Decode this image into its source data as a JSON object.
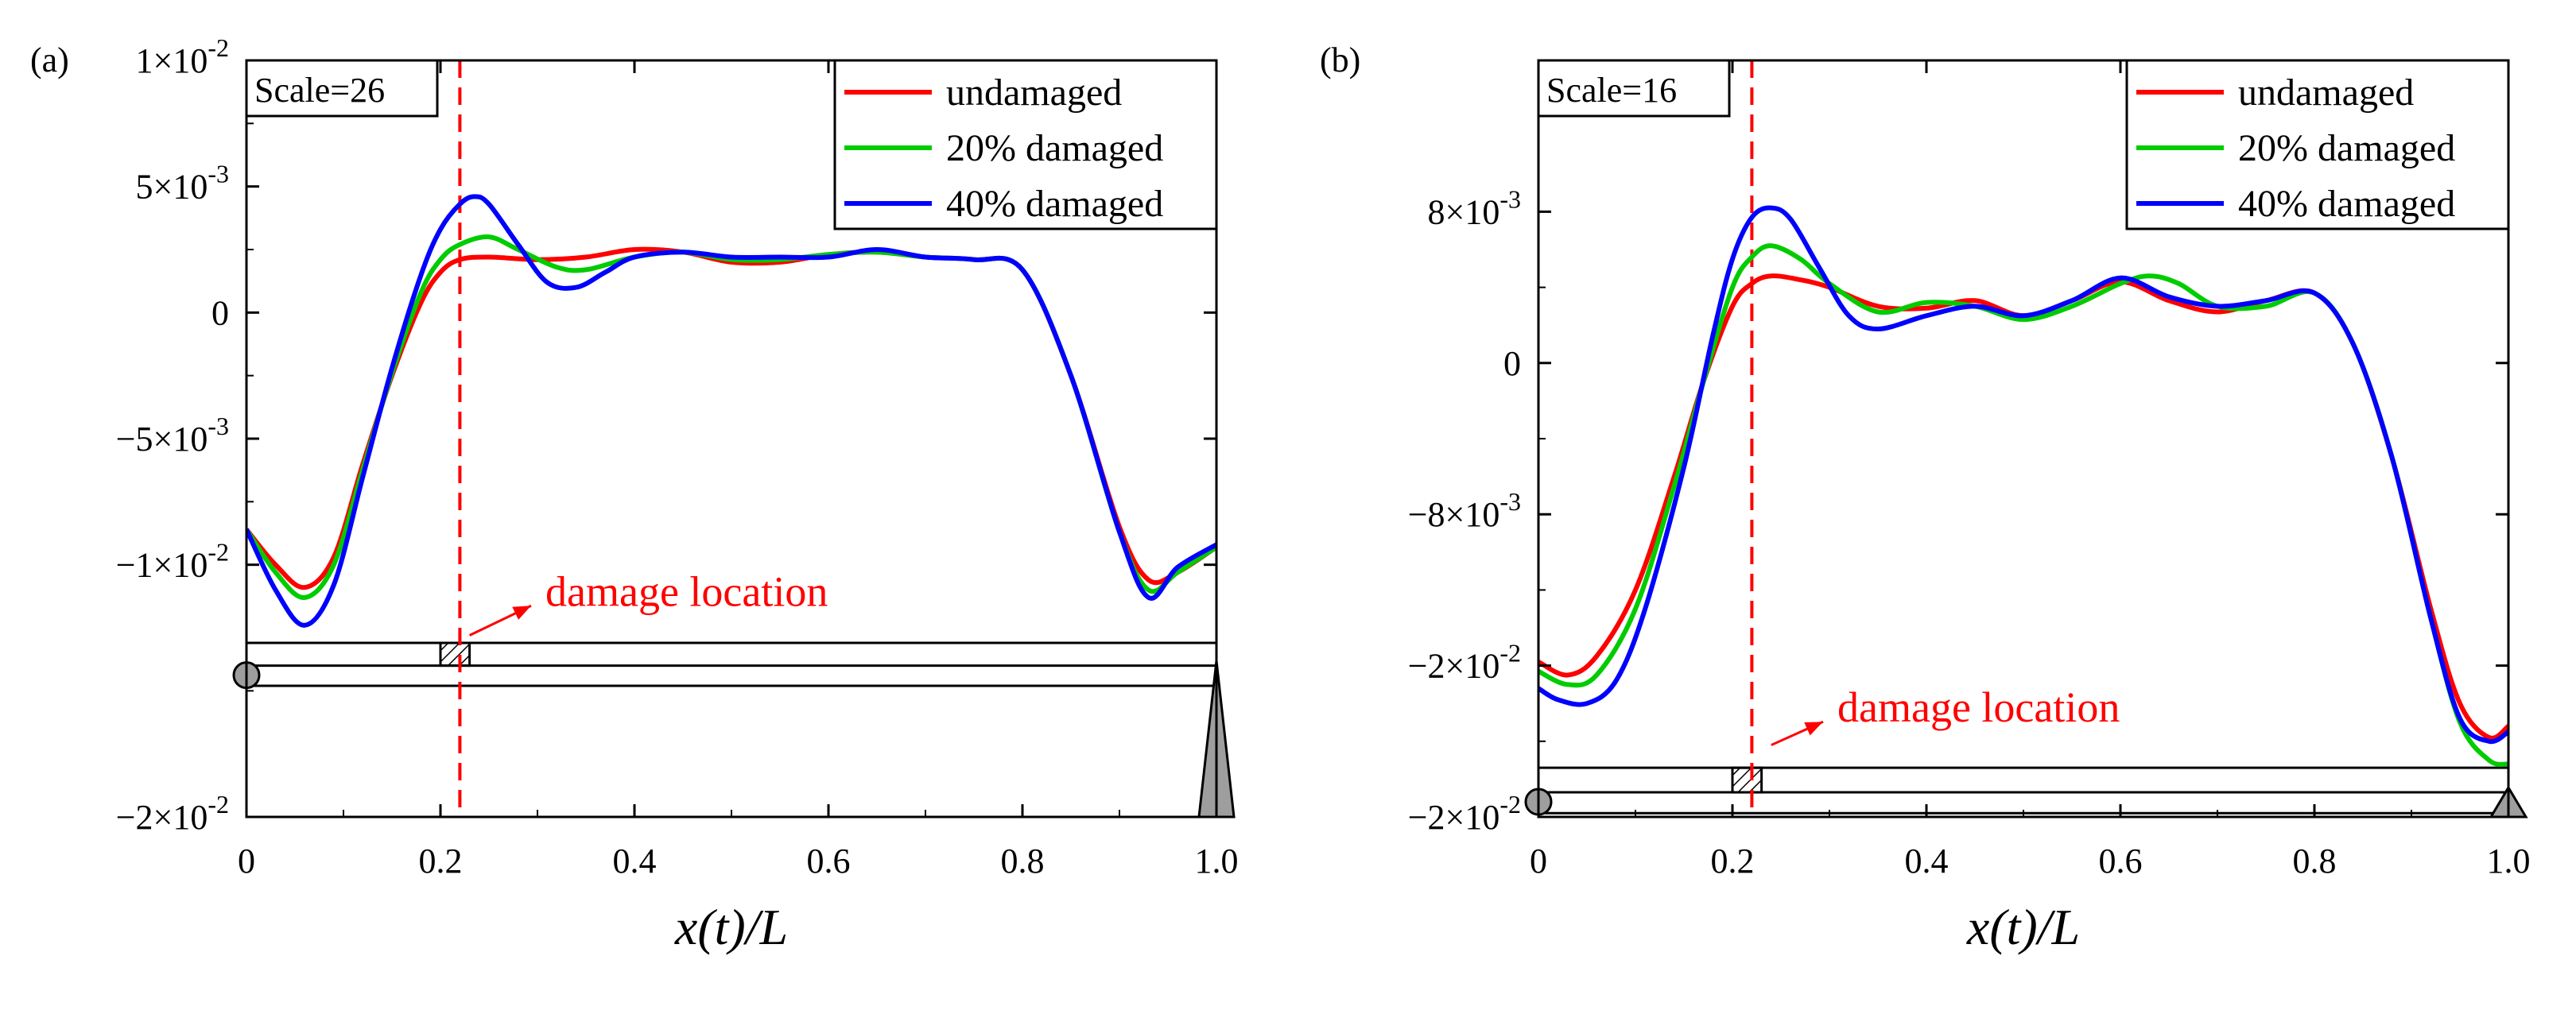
{
  "chart_data": [
    {
      "type": "line",
      "panel_label": "(a)",
      "scale_label": "Scale=26",
      "xlabel": "x(t)/L",
      "ylabel": "",
      "xlim": [
        0,
        1.0
      ],
      "ylim": [
        -0.02,
        0.01
      ],
      "xticks": [
        0,
        0.2,
        0.4,
        0.6,
        0.8,
        1.0
      ],
      "xtick_labels": [
        "0",
        "0.2",
        "0.4",
        "0.6",
        "0.8",
        "1.0"
      ],
      "yticks": [
        {
          "value": 0.01,
          "mantissa": "1×10",
          "exponent": "-2"
        },
        {
          "value": 0.005,
          "mantissa": "5×10",
          "exponent": "-3"
        },
        {
          "value": 0,
          "mantissa": "0",
          "exponent": ""
        },
        {
          "value": -0.005,
          "mantissa": "−5×10",
          "exponent": "-3"
        },
        {
          "value": -0.01,
          "mantissa": "−1×10",
          "exponent": "-2"
        },
        {
          "value": -0.02,
          "mantissa": "−2×10",
          "exponent": "-2"
        }
      ],
      "damage_x": 0.22,
      "annotation": {
        "text": "damage location",
        "x": 0.3,
        "y": -0.0115,
        "arrow_to": [
          0.23,
          -0.0128
        ]
      },
      "beam": {
        "top": -0.0131,
        "mid": -0.014,
        "bottom": -0.0148,
        "patch": [
          0.2,
          0.23
        ]
      },
      "legend": [
        "undamaged",
        "20% damaged",
        "40% damaged"
      ],
      "series": [
        {
          "name": "undamaged",
          "color": "#ff0000",
          "x": [
            0,
            0.03,
            0.06,
            0.09,
            0.12,
            0.15,
            0.18,
            0.2,
            0.22,
            0.25,
            0.3,
            0.35,
            0.4,
            0.45,
            0.5,
            0.55,
            0.6,
            0.65,
            0.7,
            0.75,
            0.8,
            0.85,
            0.9,
            0.93,
            0.96,
            1.0
          ],
          "y": [
            -0.0086,
            -0.01,
            -0.0109,
            -0.0097,
            -0.006,
            -0.0025,
            0.0004,
            0.0016,
            0.0021,
            0.0022,
            0.0021,
            0.0022,
            0.0025,
            0.0024,
            0.002,
            0.002,
            0.0023,
            0.0024,
            0.0022,
            0.0021,
            0.0017,
            -0.0025,
            -0.0085,
            -0.0106,
            -0.0103,
            -0.0093
          ]
        },
        {
          "name": "20% damaged",
          "color": "#00cc00",
          "x": [
            0,
            0.03,
            0.06,
            0.09,
            0.12,
            0.15,
            0.18,
            0.2,
            0.22,
            0.25,
            0.28,
            0.32,
            0.35,
            0.4,
            0.45,
            0.5,
            0.55,
            0.6,
            0.65,
            0.7,
            0.75,
            0.8,
            0.85,
            0.9,
            0.93,
            0.96,
            1.0
          ],
          "y": [
            -0.0086,
            -0.0103,
            -0.0113,
            -0.01,
            -0.0062,
            -0.0024,
            0.0008,
            0.0021,
            0.0027,
            0.003,
            0.0025,
            0.0018,
            0.0017,
            0.0022,
            0.0024,
            0.0021,
            0.0021,
            0.0023,
            0.0024,
            0.0022,
            0.0021,
            0.0017,
            -0.0025,
            -0.0087,
            -0.011,
            -0.0103,
            -0.0093
          ]
        },
        {
          "name": "40% damaged",
          "color": "#0000ff",
          "x": [
            0,
            0.03,
            0.06,
            0.09,
            0.12,
            0.15,
            0.18,
            0.2,
            0.22,
            0.235,
            0.25,
            0.28,
            0.31,
            0.34,
            0.37,
            0.4,
            0.45,
            0.5,
            0.55,
            0.6,
            0.65,
            0.7,
            0.75,
            0.8,
            0.85,
            0.9,
            0.93,
            0.96,
            1.0
          ],
          "y": [
            -0.0086,
            -0.011,
            -0.0124,
            -0.0108,
            -0.0065,
            -0.0022,
            0.0015,
            0.0033,
            0.0043,
            0.0046,
            0.0043,
            0.0027,
            0.0012,
            0.001,
            0.0016,
            0.0022,
            0.0024,
            0.0022,
            0.0022,
            0.0022,
            0.0025,
            0.0022,
            0.0021,
            0.0017,
            -0.0025,
            -0.0087,
            -0.0113,
            -0.0101,
            -0.0092
          ]
        }
      ]
    },
    {
      "type": "line",
      "panel_label": "(b)",
      "scale_label": "Scale=16",
      "xlabel": "x(t)/L",
      "ylabel": "",
      "xlim": [
        0,
        1.0
      ],
      "ylim": [
        -0.024,
        0.016
      ],
      "xticks": [
        0,
        0.2,
        0.4,
        0.6,
        0.8,
        1.0
      ],
      "xtick_labels": [
        "0",
        "0.2",
        "0.4",
        "0.6",
        "0.8",
        "1.0"
      ],
      "yticks": [
        {
          "value": 0.008,
          "mantissa": "8×10",
          "exponent": "-3"
        },
        {
          "value": 0,
          "mantissa": "0",
          "exponent": ""
        },
        {
          "value": -0.008,
          "mantissa": "−8×10",
          "exponent": "-3"
        },
        {
          "value": -0.016,
          "mantissa": "−2×10",
          "exponent": "-2"
        },
        {
          "value": -0.024,
          "mantissa": "−2×10",
          "exponent": "-2"
        }
      ],
      "damage_x": 0.22,
      "annotation": {
        "text": "damage location",
        "x": 0.3,
        "y": -0.0188,
        "arrow_to": [
          0.24,
          -0.0202
        ]
      },
      "beam": {
        "top": -0.0214,
        "mid": -0.0227,
        "bottom": -0.0238,
        "patch": [
          0.2,
          0.23
        ]
      },
      "legend": [
        "undamaged",
        "20% damaged",
        "40% damaged"
      ],
      "series": [
        {
          "name": "undamaged",
          "color": "#ff0000",
          "x": [
            0,
            0.03,
            0.06,
            0.1,
            0.14,
            0.17,
            0.2,
            0.22,
            0.24,
            0.27,
            0.3,
            0.35,
            0.4,
            0.45,
            0.5,
            0.55,
            0.6,
            0.65,
            0.7,
            0.75,
            0.8,
            0.84,
            0.88,
            0.92,
            0.95,
            0.98,
            1.0
          ],
          "y": [
            -0.0158,
            -0.0165,
            -0.0155,
            -0.012,
            -0.006,
            -0.001,
            0.003,
            0.0042,
            0.0046,
            0.0044,
            0.004,
            0.003,
            0.0029,
            0.0033,
            0.0025,
            0.0033,
            0.0043,
            0.0033,
            0.0027,
            0.0033,
            0.0037,
            0.001,
            -0.005,
            -0.013,
            -0.018,
            -0.0198,
            -0.0192
          ]
        },
        {
          "name": "20% damaged",
          "color": "#00cc00",
          "x": [
            0,
            0.03,
            0.06,
            0.1,
            0.14,
            0.17,
            0.2,
            0.22,
            0.24,
            0.27,
            0.3,
            0.35,
            0.4,
            0.45,
            0.5,
            0.55,
            0.6,
            0.63,
            0.66,
            0.7,
            0.75,
            0.8,
            0.84,
            0.88,
            0.92,
            0.95,
            0.98,
            1.0
          ],
          "y": [
            -0.0163,
            -0.017,
            -0.0165,
            -0.013,
            -0.0065,
            -0.001,
            0.004,
            0.0056,
            0.0062,
            0.0055,
            0.0042,
            0.0027,
            0.0032,
            0.003,
            0.0023,
            0.003,
            0.0042,
            0.0046,
            0.0042,
            0.003,
            0.003,
            0.0037,
            0.001,
            -0.005,
            -0.0135,
            -0.019,
            -0.021,
            -0.0212
          ]
        },
        {
          "name": "40% damaged",
          "color": "#0000ff",
          "x": [
            0,
            0.02,
            0.05,
            0.08,
            0.11,
            0.15,
            0.18,
            0.2,
            0.22,
            0.24,
            0.26,
            0.29,
            0.32,
            0.35,
            0.4,
            0.45,
            0.5,
            0.55,
            0.6,
            0.65,
            0.7,
            0.75,
            0.8,
            0.84,
            0.88,
            0.92,
            0.95,
            0.98,
            1.0
          ],
          "y": [
            -0.0172,
            -0.0178,
            -0.018,
            -0.0168,
            -0.013,
            -0.0055,
            0.0015,
            0.0055,
            0.0077,
            0.0082,
            0.0076,
            0.005,
            0.0025,
            0.0018,
            0.0025,
            0.003,
            0.0025,
            0.0033,
            0.0045,
            0.0035,
            0.003,
            0.0033,
            0.0037,
            0.001,
            -0.005,
            -0.0135,
            -0.0188,
            -0.02,
            -0.0195
          ]
        }
      ]
    }
  ]
}
